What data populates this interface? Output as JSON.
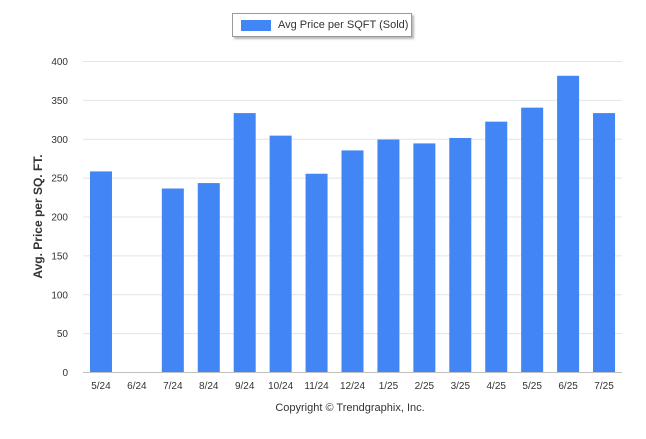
{
  "chart_data": {
    "type": "bar",
    "categories": [
      "5/24",
      "6/24",
      "7/24",
      "8/24",
      "9/24",
      "10/24",
      "11/24",
      "12/24",
      "1/25",
      "2/25",
      "3/25",
      "4/25",
      "5/25",
      "6/25",
      "7/25"
    ],
    "series": [
      {
        "name": "Avg Price per SQFT (Sold)",
        "values": [
          258,
          null,
          236,
          243,
          333,
          304,
          255,
          285,
          299,
          294,
          301,
          322,
          340,
          381,
          333
        ]
      }
    ],
    "ylabel": "Avg. Price per SQ. FT.",
    "xlabel": "",
    "ylim": [
      0,
      400
    ],
    "yticks": [
      0,
      50,
      100,
      150,
      200,
      250,
      300,
      350,
      400
    ],
    "grid": true,
    "legend": "top-center",
    "colors": {
      "bar": "#4285f4",
      "grid": "#e4e4e4",
      "axis": "#c0c0c0"
    }
  },
  "footer": {
    "copyright": "Copyright © Trendgraphix, Inc."
  }
}
